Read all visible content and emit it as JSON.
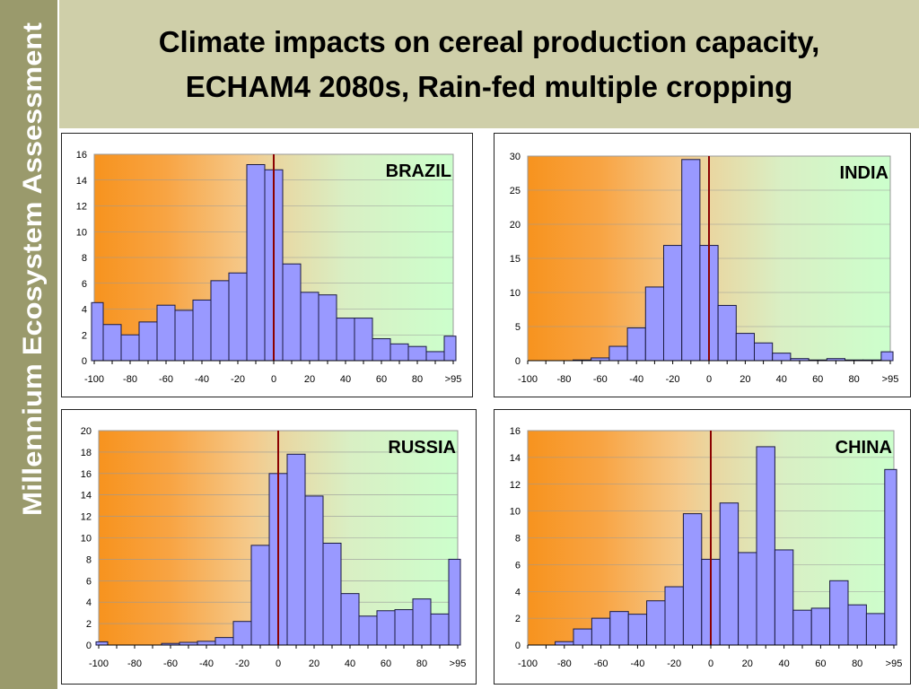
{
  "sidebar": {
    "text": "Millennium Ecosystem Assessment",
    "background": "#9a9a6c"
  },
  "header": {
    "title_line1": "Climate impacts on cereal production capacity,",
    "title_line2": "ECHAM4 2080s, Rain-fed multiple cropping"
  },
  "colors": {
    "bar": "#9999ff",
    "bar_edge": "#1a1a40",
    "zero_line": "#8b0000",
    "bg_left": "#f7931e",
    "bg_right": "#ccffcc"
  },
  "chart_data": [
    {
      "type": "bar",
      "title": "BRAZIL",
      "x_tick_labels": [
        "-100",
        "-80",
        "-60",
        "-40",
        "-20",
        "0",
        "20",
        "40",
        "60",
        "80",
        ">95"
      ],
      "bin_centers": [
        -100,
        -90,
        -80,
        -70,
        -60,
        -50,
        -40,
        -30,
        -20,
        -10,
        0,
        10,
        20,
        30,
        40,
        50,
        60,
        70,
        80,
        90,
        100
      ],
      "values": [
        4.5,
        2.8,
        2.0,
        3.0,
        4.3,
        3.9,
        4.7,
        6.2,
        6.8,
        15.2,
        14.8,
        7.5,
        5.3,
        5.1,
        3.3,
        3.3,
        1.7,
        1.3,
        1.1,
        0.7,
        1.9
      ],
      "ylim": [
        0,
        16
      ],
      "y_ticks": [
        0,
        2,
        4,
        6,
        8,
        10,
        12,
        14,
        16
      ],
      "grid": true
    },
    {
      "type": "bar",
      "title": "INDIA",
      "x_tick_labels": [
        "-100",
        "-80",
        "-60",
        "-40",
        "-20",
        "0",
        "20",
        "40",
        "60",
        "80",
        ">95"
      ],
      "bin_centers": [
        -100,
        -90,
        -80,
        -70,
        -60,
        -50,
        -40,
        -30,
        -20,
        -10,
        0,
        10,
        20,
        30,
        40,
        50,
        60,
        70,
        80,
        90,
        100
      ],
      "values": [
        0,
        0,
        0,
        0.1,
        0.4,
        2.1,
        4.8,
        10.8,
        16.9,
        29.5,
        16.9,
        8.1,
        4.0,
        2.6,
        1.1,
        0.3,
        0.1,
        0.3,
        0.1,
        0.1,
        1.3
      ],
      "ylim": [
        0,
        30
      ],
      "y_ticks": [
        0,
        5,
        10,
        15,
        20,
        25,
        30
      ],
      "grid": true
    },
    {
      "type": "bar",
      "title": "RUSSIA",
      "x_tick_labels": [
        "-100",
        "-80",
        "-60",
        "-40",
        "-20",
        "0",
        "20",
        "40",
        "60",
        "80",
        ">95"
      ],
      "bin_centers": [
        -100,
        -90,
        -80,
        -70,
        -60,
        -50,
        -40,
        -30,
        -20,
        -10,
        0,
        10,
        20,
        30,
        40,
        50,
        60,
        70,
        80,
        90,
        100
      ],
      "values": [
        0.3,
        0,
        0,
        0,
        0.15,
        0.25,
        0.35,
        0.7,
        2.2,
        9.3,
        16.0,
        17.8,
        13.9,
        9.5,
        4.8,
        2.7,
        3.2,
        3.3,
        4.3,
        2.9,
        8.0
      ],
      "ylim": [
        0,
        20
      ],
      "y_ticks": [
        0,
        2,
        4,
        6,
        8,
        10,
        12,
        14,
        16,
        18,
        20
      ],
      "grid": true
    },
    {
      "type": "bar",
      "title": "CHINA",
      "x_tick_labels": [
        "-100",
        "-80",
        "-60",
        "-40",
        "-20",
        "0",
        "20",
        "40",
        "60",
        "80",
        ">95"
      ],
      "bin_centers": [
        -100,
        -90,
        -80,
        -70,
        -60,
        -50,
        -40,
        -30,
        -20,
        -10,
        0,
        10,
        20,
        30,
        40,
        50,
        60,
        70,
        80,
        90,
        100
      ],
      "values": [
        0,
        0,
        0.25,
        1.2,
        2.0,
        2.5,
        2.3,
        3.3,
        4.35,
        9.8,
        6.4,
        10.6,
        6.9,
        14.8,
        7.1,
        2.6,
        2.75,
        4.8,
        3.0,
        2.35,
        13.1
      ],
      "ylim": [
        0,
        16
      ],
      "y_ticks": [
        0,
        2,
        4,
        6,
        8,
        10,
        12,
        14,
        16
      ],
      "grid": true
    }
  ]
}
